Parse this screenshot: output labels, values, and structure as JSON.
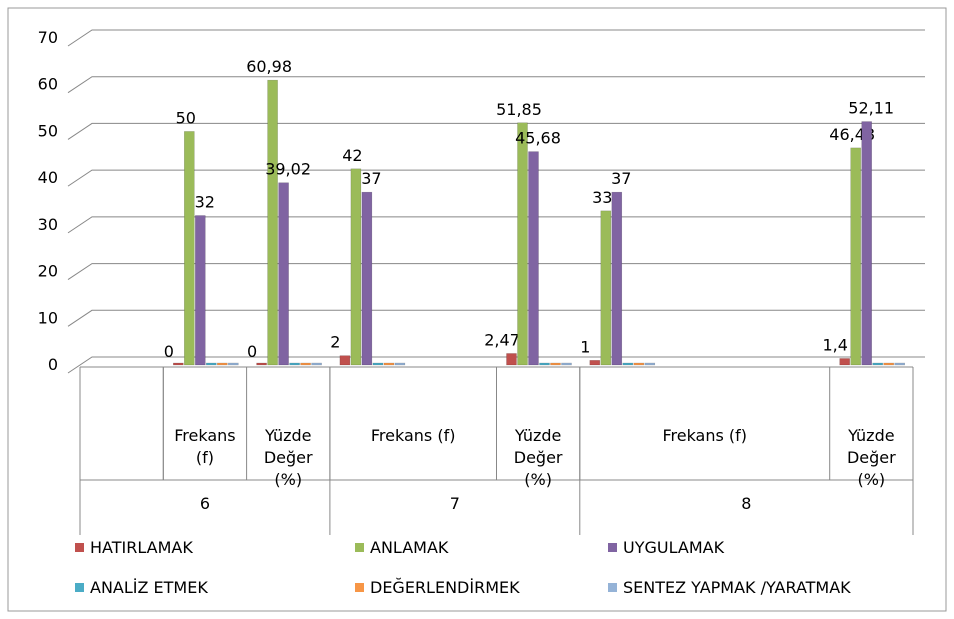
{
  "chart_data": {
    "type": "bar",
    "categories": [
      null,
      "Frekans (f)",
      "Yüzde Değer (%)",
      "Frekans (f)",
      null,
      "Yüzde Değer (%)",
      "Frekans (f)",
      null,
      null,
      "Yüzde Değer (%)"
    ],
    "groups": [
      {
        "label": "6",
        "span": 3
      },
      {
        "label": "7",
        "span": 3
      },
      {
        "label": "8",
        "span": 4
      }
    ],
    "series": [
      {
        "name": "HATIRLAMAK",
        "color": "#c0504d",
        "values": [
          null,
          0,
          0,
          2,
          null,
          2.47,
          1,
          null,
          null,
          1.4
        ],
        "value_labels": [
          null,
          "0",
          "0",
          "2",
          null,
          "2,47",
          "1",
          null,
          null,
          "1,4"
        ]
      },
      {
        "name": "ANLAMAK",
        "color": "#9bbb59",
        "values": [
          null,
          50,
          60.98,
          42,
          null,
          51.85,
          33,
          null,
          null,
          46.48
        ],
        "value_labels": [
          null,
          "50",
          "60,98",
          "42",
          null,
          "51,85",
          "33",
          null,
          null,
          "46,48"
        ]
      },
      {
        "name": "UYGULAMAK",
        "color": "#8064a2",
        "values": [
          null,
          32,
          39.02,
          37,
          null,
          45.68,
          37,
          null,
          null,
          52.11
        ],
        "value_labels": [
          null,
          "32",
          "39,02",
          "37",
          null,
          "45,68",
          "37",
          null,
          null,
          "52,11"
        ]
      },
      {
        "name": "ANALİZ ETMEK",
        "color": "#4bacc6",
        "values": [
          null,
          0,
          0,
          0,
          null,
          0,
          0,
          null,
          null,
          0
        ]
      },
      {
        "name": "DEĞERLENDİRMEK",
        "color": "#f79646",
        "values": [
          null,
          0,
          0,
          0,
          null,
          0,
          0,
          null,
          null,
          0
        ]
      },
      {
        "name": "SENTEZ YAPMAK /YARATMAK",
        "color": "#95b3d7",
        "values": [
          null,
          0,
          0,
          0,
          null,
          0,
          0,
          null,
          null,
          0
        ]
      }
    ],
    "ylim": [
      0,
      70
    ],
    "yticks": [
      0,
      10,
      20,
      30,
      40,
      50,
      60,
      70
    ],
    "grid": true,
    "legend": "bottom"
  }
}
